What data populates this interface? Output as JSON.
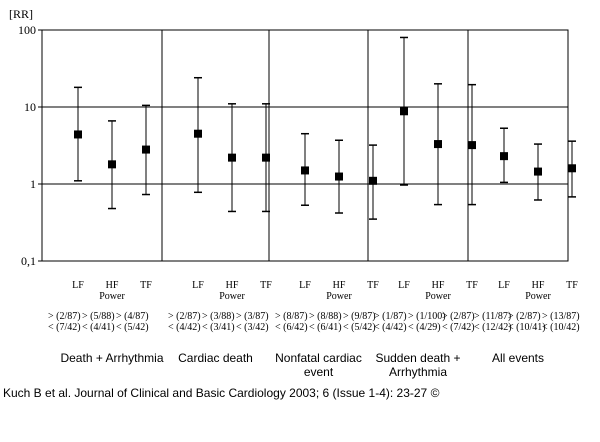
{
  "chart_data": {
    "type": "scatter",
    "subtype": "error-bar",
    "ylabel": "[RR]",
    "yscale": "log",
    "ylim": [
      0.1,
      100
    ],
    "yticks": [
      {
        "value": 100,
        "label": "100"
      },
      {
        "value": 10,
        "label": "10"
      },
      {
        "value": 1,
        "label": "1"
      },
      {
        "value": 0.1,
        "label": "0,1"
      }
    ],
    "grid": "horizontal",
    "panels": [
      {
        "title": "Death + Arrhythmia",
        "items": [
          {
            "label": "LF",
            "sub": "",
            "counts": "> (2/87)\n< (7/42)",
            "rr": 4.4,
            "lo": 1.1,
            "hi": 18
          },
          {
            "label": "HF",
            "sub": "Power",
            "counts": "> (5/88)\n< (4/41)",
            "rr": 1.8,
            "lo": 0.48,
            "hi": 6.6
          },
          {
            "label": "TF",
            "sub": "",
            "counts": "> (4/87)\n< (5/42)",
            "rr": 2.8,
            "lo": 0.73,
            "hi": 10.5
          }
        ]
      },
      {
        "title": "Cardiac death",
        "items": [
          {
            "label": "LF",
            "sub": "",
            "counts": "> (2/87)\n< (4/42)",
            "rr": 4.5,
            "lo": 0.78,
            "hi": 24
          },
          {
            "label": "HF",
            "sub": "Power",
            "counts": "> (3/88)\n< (3/41)",
            "rr": 2.2,
            "lo": 0.44,
            "hi": 11
          },
          {
            "label": "TF",
            "sub": "",
            "counts": "> (3/87)\n< (3/42)",
            "rr": 2.2,
            "lo": 0.44,
            "hi": 11
          }
        ]
      },
      {
        "title": "Nonfatal cardiac\nevent",
        "items": [
          {
            "label": "LF",
            "sub": "",
            "counts": "> (8/87)\n< (6/42)",
            "rr": 1.5,
            "lo": 0.53,
            "hi": 4.5
          },
          {
            "label": "HF",
            "sub": "Power",
            "counts": "> (8/88)\n< (6/41)",
            "rr": 1.25,
            "lo": 0.42,
            "hi": 3.7
          },
          {
            "label": "TF",
            "sub": "",
            "counts": "> (9/87)\n< (5/42)",
            "rr": 1.1,
            "lo": 0.35,
            "hi": 3.2
          }
        ]
      },
      {
        "title": "Sudden death +\nArrhythmia",
        "items": [
          {
            "label": "LF",
            "sub": "",
            "counts": "> (1/87)\n< (4/42)",
            "rr": 8.8,
            "lo": 0.97,
            "hi": 80
          },
          {
            "label": "HF",
            "sub": "Power",
            "counts": "> (1/100)\n< (4/29)",
            "rr": 3.3,
            "lo": 0.54,
            "hi": 20
          },
          {
            "label": "TF",
            "sub": "",
            "counts": "> (2/87)\n< (7/42)",
            "rr": 3.2,
            "lo": 0.54,
            "hi": 19.5
          }
        ]
      },
      {
        "title": "All events",
        "items": [
          {
            "label": "LF",
            "sub": "",
            "counts": "> (11/87)\n< (12/42)",
            "rr": 2.3,
            "lo": 1.05,
            "hi": 5.3
          },
          {
            "label": "HF",
            "sub": "Power",
            "counts": "> (2/87)\n< (10/41)",
            "rr": 1.45,
            "lo": 0.62,
            "hi": 3.3
          },
          {
            "label": "TF",
            "sub": "",
            "counts": "> (13/87)\n< (10/42)",
            "rr": 1.6,
            "lo": 0.68,
            "hi": 3.6
          }
        ]
      }
    ]
  },
  "credit": "Kuch B et al. Journal of Clinical and Basic Cardiology 2003; 6 (Issue 1-4): 23-27 ©"
}
